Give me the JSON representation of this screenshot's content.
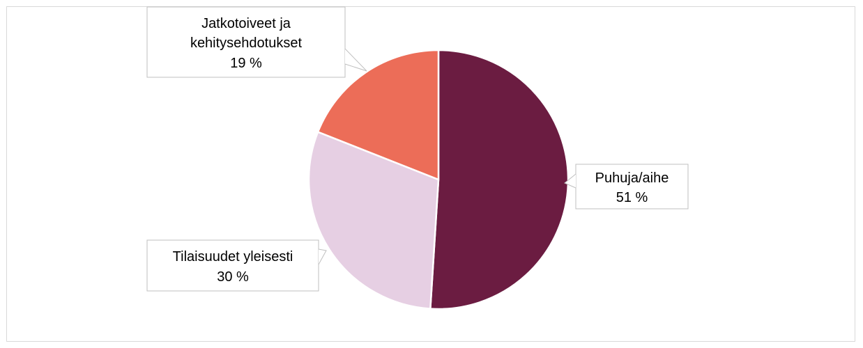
{
  "chart_data": {
    "type": "pie",
    "title": "",
    "slices": [
      {
        "label": "Puhuja/aihe",
        "value": 51,
        "value_label": "51 %",
        "color": "#6b1c41"
      },
      {
        "label": "Tilaisuudet yleisesti",
        "value": 30,
        "value_label": "30 %",
        "color": "#e6cfe3"
      },
      {
        "label": "Jatkotoiveet ja kehitysehdotukset",
        "label_lines": [
          "Jatkotoiveet ja",
          "kehitysehdotukset"
        ],
        "value": 19,
        "value_label": "19 %",
        "color": "#ec6d58"
      }
    ],
    "start_angle": "12 o'clock",
    "direction": "clockwise",
    "slice_border_color": "#ffffff",
    "label_style": "callout boxes with leader lines",
    "legend": "none"
  }
}
